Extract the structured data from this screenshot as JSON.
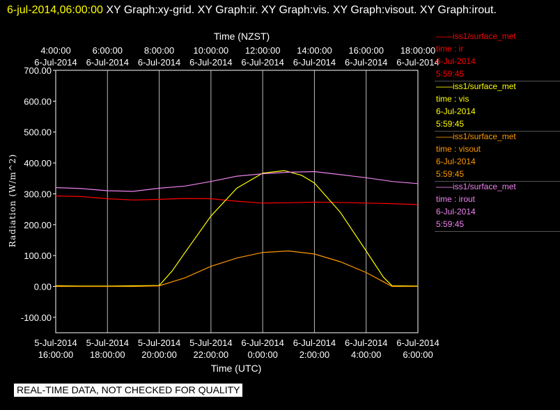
{
  "header": {
    "date_label": "6-jul-2014,06:00:00",
    "graph_list": "XY Graph:xy-grid.  XY Graph:ir.  XY Graph:vis.  XY Graph:visout.  XY Graph:irout."
  },
  "legend": [
    {
      "line1": "——iss1/surface_met",
      "line2": "time : ir",
      "line3": "6-Jul-2014",
      "line4": "5:59:45",
      "color": "#ff0000"
    },
    {
      "line1": "——iss1/surface_met",
      "line2": "time : vis",
      "line3": "6-Jul-2014",
      "line4": "5:59:45",
      "color": "#ffff00"
    },
    {
      "line1": "——iss1/surface_met",
      "line2": "time : visout",
      "line3": "6-Jul-2014",
      "line4": "5:59:45",
      "color": "#ff9900"
    },
    {
      "line1": "——iss1/surface_met",
      "line2": "time : irout",
      "line3": "6-Jul-2014",
      "line4": "5:59:45",
      "color": "#ee82ee"
    }
  ],
  "disclaimer": "REAL-TIME DATA, NOT CHECKED FOR QUALITY",
  "chart_data": {
    "type": "line",
    "xlabel": "Time (UTC)",
    "x2label": "Time (NZST)",
    "ylabel": "Radiation (W/m^2)",
    "xlim": [
      "2014-07-05 16:00:00",
      "2014-07-06 06:00:00"
    ],
    "ylim": [
      -150,
      700
    ],
    "yticks": [
      "700.00",
      "600.00",
      "500.00",
      "400.00",
      "300.00",
      "200.00",
      "100.00",
      "0.00",
      "-100.00"
    ],
    "yticks_values": [
      700,
      600,
      500,
      400,
      300,
      200,
      100,
      0,
      -100
    ],
    "xticks_bottom": [
      [
        "5-Jul-2014",
        "16:00:00"
      ],
      [
        "5-Jul-2014",
        "18:00:00"
      ],
      [
        "5-Jul-2014",
        "20:00:00"
      ],
      [
        "5-Jul-2014",
        "22:00:00"
      ],
      [
        "6-Jul-2014",
        "0:00:00"
      ],
      [
        "6-Jul-2014",
        "2:00:00"
      ],
      [
        "6-Jul-2014",
        "4:00:00"
      ],
      [
        "6-Jul-2014",
        "6:00:00"
      ]
    ],
    "xticks_top": [
      [
        "4:00:00",
        "6-Jul-2014"
      ],
      [
        "6:00:00",
        "6-Jul-2014"
      ],
      [
        "8:00:00",
        "6-Jul-2014"
      ],
      [
        "10:00:00",
        "6-Jul-2014"
      ],
      [
        "12:00:00",
        "6-Jul-2014"
      ],
      [
        "14:00:00",
        "6-Jul-2014"
      ],
      [
        "16:00:00",
        "6-Jul-2014"
      ],
      [
        "18:00:00",
        "6-Jul-2014"
      ]
    ],
    "grid": true,
    "legend_position": "right",
    "series": [
      {
        "name": "iss1/surface_met time : ir",
        "color": "#ff0000",
        "x": [
          "16:00",
          "17:00",
          "18:00",
          "19:00",
          "20:00",
          "21:00",
          "22:00",
          "23:00",
          "00:00",
          "01:00",
          "02:00",
          "03:00",
          "04:00",
          "05:00",
          "06:00"
        ],
        "y": [
          293,
          291,
          284,
          280,
          282,
          285,
          284,
          276,
          270,
          271,
          273,
          272,
          270,
          268,
          265
        ]
      },
      {
        "name": "iss1/surface_met time : vis",
        "color": "#ffff00",
        "x": [
          "16:00",
          "17:00",
          "18:00",
          "19:00",
          "20:00",
          "20:30",
          "21:00",
          "22:00",
          "23:00",
          "00:00",
          "00:50",
          "01:30",
          "02:00",
          "03:00",
          "04:00",
          "04:40",
          "05:00",
          "06:00"
        ],
        "y": [
          2,
          1,
          1,
          2,
          3,
          50,
          110,
          228,
          318,
          367,
          375,
          360,
          335,
          240,
          115,
          30,
          2,
          1
        ]
      },
      {
        "name": "iss1/surface_met time : visout",
        "color": "#ff9900",
        "x": [
          "16:00",
          "17:00",
          "18:00",
          "19:00",
          "20:00",
          "21:00",
          "22:00",
          "23:00",
          "00:00",
          "01:00",
          "02:00",
          "03:00",
          "04:00",
          "04:40",
          "05:00",
          "06:00"
        ],
        "y": [
          0,
          0,
          0,
          0,
          2,
          28,
          65,
          92,
          110,
          115,
          105,
          80,
          45,
          15,
          0,
          0
        ]
      },
      {
        "name": "iss1/surface_met time : irout",
        "color": "#ee82ee",
        "x": [
          "16:00",
          "17:00",
          "18:00",
          "19:00",
          "20:00",
          "21:00",
          "22:00",
          "23:00",
          "00:00",
          "01:00",
          "02:00",
          "03:00",
          "04:00",
          "05:00",
          "06:00"
        ],
        "y": [
          320,
          317,
          310,
          308,
          318,
          325,
          340,
          357,
          365,
          370,
          372,
          362,
          352,
          340,
          333
        ]
      }
    ]
  }
}
